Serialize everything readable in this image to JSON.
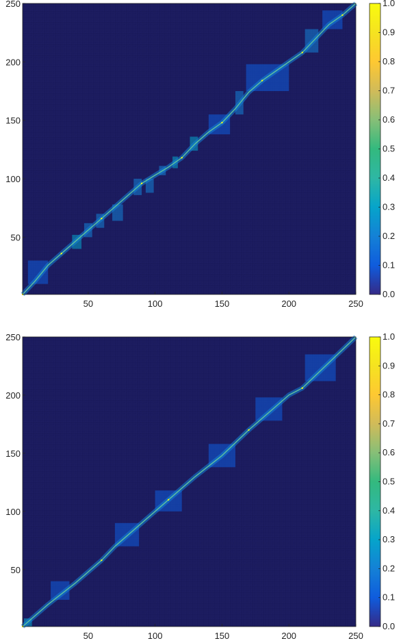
{
  "chart_data": [
    {
      "type": "heatmap",
      "title": "",
      "xlabel": "",
      "ylabel": "",
      "xlim": [
        1,
        250
      ],
      "ylim": [
        1,
        250
      ],
      "x_ticks": [
        50,
        100,
        150,
        200,
        250
      ],
      "y_ticks": [
        50,
        100,
        150,
        200,
        250
      ],
      "colorbar": {
        "range": [
          0.0,
          1.0
        ],
        "ticks": [
          "0.0",
          "0.1",
          "0.2",
          "0.3",
          "0.4",
          "0.5",
          "0.6",
          "0.7",
          "0.8",
          "0.9",
          "1.0"
        ],
        "colormap": "parula"
      },
      "background_value": 0.0,
      "background_color": "#1f1f66",
      "alignment_path": [
        [
          1,
          1
        ],
        [
          10,
          12
        ],
        [
          20,
          26
        ],
        [
          30,
          36
        ],
        [
          40,
          46
        ],
        [
          50,
          56
        ],
        [
          60,
          66
        ],
        [
          70,
          76
        ],
        [
          80,
          86
        ],
        [
          90,
          96
        ],
        [
          100,
          103
        ],
        [
          110,
          110
        ],
        [
          120,
          118
        ],
        [
          130,
          130
        ],
        [
          140,
          140
        ],
        [
          150,
          148
        ],
        [
          160,
          160
        ],
        [
          170,
          174
        ],
        [
          180,
          184
        ],
        [
          190,
          192
        ],
        [
          200,
          200
        ],
        [
          210,
          208
        ],
        [
          220,
          220
        ],
        [
          230,
          232
        ],
        [
          240,
          240
        ],
        [
          250,
          250
        ]
      ],
      "path_peak_value": 1.0,
      "path_band_value": 0.15,
      "blocks": [
        {
          "x": [
            5,
            20
          ],
          "y": [
            10,
            30
          ],
          "value": 0.12
        },
        {
          "x": [
            38,
            45
          ],
          "y": [
            40,
            52
          ],
          "value": 0.25
        },
        {
          "x": [
            47,
            53
          ],
          "y": [
            50,
            62
          ],
          "value": 0.2
        },
        {
          "x": [
            56,
            62
          ],
          "y": [
            58,
            70
          ],
          "value": 0.2
        },
        {
          "x": [
            68,
            76
          ],
          "y": [
            64,
            78
          ],
          "value": 0.2
        },
        {
          "x": [
            84,
            90
          ],
          "y": [
            86,
            100
          ],
          "value": 0.2
        },
        {
          "x": [
            93,
            99
          ],
          "y": [
            88,
            100
          ],
          "value": 0.2
        },
        {
          "x": [
            103,
            108
          ],
          "y": [
            103,
            111
          ],
          "value": 0.2
        },
        {
          "x": [
            113,
            117
          ],
          "y": [
            109,
            119
          ],
          "value": 0.25
        },
        {
          "x": [
            126,
            132
          ],
          "y": [
            124,
            136
          ],
          "value": 0.25
        },
        {
          "x": [
            140,
            156
          ],
          "y": [
            138,
            155
          ],
          "value": 0.12
        },
        {
          "x": [
            160,
            166
          ],
          "y": [
            155,
            175
          ],
          "value": 0.2
        },
        {
          "x": [
            168,
            200
          ],
          "y": [
            175,
            198
          ],
          "value": 0.12
        },
        {
          "x": [
            212,
            222
          ],
          "y": [
            208,
            228
          ],
          "value": 0.2
        },
        {
          "x": [
            225,
            240
          ],
          "y": [
            228,
            244
          ],
          "value": 0.12
        }
      ]
    },
    {
      "type": "heatmap",
      "title": "",
      "xlabel": "",
      "ylabel": "",
      "xlim": [
        1,
        250
      ],
      "ylim": [
        1,
        250
      ],
      "x_ticks": [
        50,
        100,
        150,
        200,
        250
      ],
      "y_ticks": [
        50,
        100,
        150,
        200,
        250
      ],
      "colorbar": {
        "range": [
          0.0,
          1.0
        ],
        "ticks": [
          "0.0",
          "0.1",
          "0.2",
          "0.3",
          "0.4",
          "0.5",
          "0.6",
          "0.7",
          "0.8",
          "0.9",
          "1.0"
        ],
        "colormap": "parula"
      },
      "background_value": 0.0,
      "background_color": "#1f1f66",
      "alignment_path": [
        [
          1,
          1
        ],
        [
          20,
          20
        ],
        [
          40,
          38
        ],
        [
          60,
          58
        ],
        [
          70,
          70
        ],
        [
          90,
          90
        ],
        [
          110,
          110
        ],
        [
          130,
          130
        ],
        [
          150,
          148
        ],
        [
          170,
          170
        ],
        [
          190,
          190
        ],
        [
          200,
          200
        ],
        [
          210,
          206
        ],
        [
          230,
          228
        ],
        [
          250,
          250
        ]
      ],
      "path_peak_value": 1.0,
      "path_band_value": 0.15,
      "blocks": [
        {
          "x": [
            2,
            8
          ],
          "y": [
            1,
            8
          ],
          "value": 0.3
        },
        {
          "x": [
            22,
            36
          ],
          "y": [
            24,
            40
          ],
          "value": 0.12
        },
        {
          "x": [
            70,
            88
          ],
          "y": [
            70,
            90
          ],
          "value": 0.12
        },
        {
          "x": [
            100,
            120
          ],
          "y": [
            100,
            118
          ],
          "value": 0.12
        },
        {
          "x": [
            140,
            160
          ],
          "y": [
            138,
            158
          ],
          "value": 0.12
        },
        {
          "x": [
            175,
            195
          ],
          "y": [
            178,
            198
          ],
          "value": 0.12
        },
        {
          "x": [
            212,
            235
          ],
          "y": [
            212,
            235
          ],
          "value": 0.12
        }
      ]
    }
  ]
}
